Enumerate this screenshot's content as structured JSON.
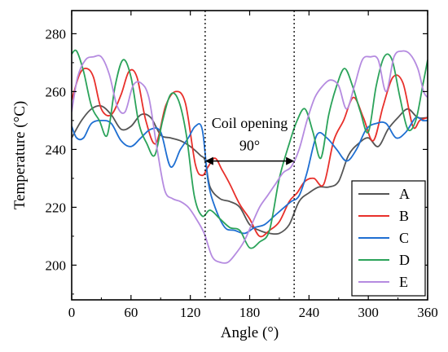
{
  "chart_data": {
    "type": "line",
    "xlabel": "Angle (°)",
    "ylabel": "Temperature (°C)",
    "xlim": [
      0,
      360
    ],
    "ylim": [
      188,
      288
    ],
    "xticks": [
      0,
      60,
      120,
      180,
      240,
      300,
      360
    ],
    "yticks": [
      200,
      220,
      240,
      260,
      280
    ],
    "grid": false,
    "legend_position": "bottom-right",
    "annotations": {
      "label": "Coil opening",
      "span_label": "90°",
      "vlines": [
        135,
        225
      ],
      "arrow_y": 236
    },
    "series": [
      {
        "name": "A",
        "color": "#555555",
        "x": [
          0,
          10,
          20,
          30,
          40,
          50,
          60,
          70,
          80,
          90,
          100,
          110,
          120,
          130,
          135,
          140,
          150,
          160,
          170,
          180,
          190,
          200,
          210,
          220,
          230,
          240,
          250,
          260,
          270,
          280,
          290,
          300,
          310,
          320,
          330,
          340,
          350,
          360
        ],
        "y": [
          244,
          250,
          254,
          255,
          252,
          247,
          248,
          252,
          251,
          245,
          244,
          243,
          241,
          238,
          236,
          227,
          223,
          222,
          220,
          214,
          212,
          211,
          211,
          214,
          222,
          225,
          227,
          227,
          229,
          238,
          242,
          244,
          241,
          247,
          251,
          254,
          251,
          251
        ]
      },
      {
        "name": "B",
        "color": "#e8302b",
        "x": [
          0,
          8,
          15,
          22,
          30,
          40,
          50,
          58,
          66,
          75,
          85,
          95,
          105,
          115,
          125,
          132,
          138,
          145,
          152,
          160,
          170,
          180,
          190,
          200,
          210,
          220,
          228,
          236,
          245,
          255,
          265,
          275,
          285,
          295,
          305,
          315,
          325,
          335,
          345,
          352,
          360
        ],
        "y": [
          257,
          266,
          268,
          265,
          254,
          252,
          259,
          267,
          265,
          250,
          242,
          255,
          260,
          256,
          235,
          231,
          234,
          237,
          233,
          228,
          221,
          216,
          210,
          212,
          215,
          222,
          225,
          229,
          230,
          228,
          243,
          250,
          258,
          251,
          243,
          255,
          265,
          263,
          248,
          250,
          251
        ]
      },
      {
        "name": "C",
        "color": "#1f6fd2",
        "x": [
          0,
          5,
          12,
          20,
          30,
          40,
          50,
          60,
          70,
          80,
          90,
          100,
          110,
          118,
          125,
          132,
          138,
          145,
          155,
          165,
          175,
          185,
          195,
          205,
          215,
          222,
          230,
          238,
          248,
          258,
          268,
          278,
          288,
          298,
          308,
          318,
          328,
          338,
          348,
          355,
          360
        ],
        "y": [
          248,
          244,
          244,
          249,
          250,
          249,
          243,
          241,
          244,
          247,
          246,
          234,
          240,
          244,
          248,
          247,
          229,
          220,
          213,
          212,
          211,
          213,
          214,
          217,
          220,
          222,
          224,
          232,
          245,
          244,
          240,
          236,
          240,
          247,
          249,
          249,
          244,
          246,
          251,
          250,
          250
        ]
      },
      {
        "name": "D",
        "color": "#2ba35a",
        "x": [
          0,
          5,
          12,
          20,
          28,
          36,
          44,
          52,
          60,
          68,
          76,
          84,
          92,
          100,
          108,
          116,
          124,
          132,
          140,
          150,
          160,
          170,
          180,
          190,
          200,
          210,
          220,
          228,
          236,
          244,
          252,
          260,
          268,
          276,
          284,
          292,
          300,
          308,
          316,
          324,
          332,
          340,
          348,
          355,
          360
        ],
        "y": [
          273,
          274,
          267,
          255,
          250,
          245,
          262,
          271,
          265,
          249,
          242,
          238,
          250,
          259,
          257,
          245,
          224,
          217,
          219,
          216,
          213,
          212,
          206,
          208,
          212,
          230,
          242,
          250,
          254,
          246,
          237,
          252,
          262,
          268,
          262,
          253,
          246,
          262,
          272,
          271,
          258,
          247,
          250,
          262,
          271
        ]
      },
      {
        "name": "E",
        "color": "#b58be0",
        "x": [
          0,
          6,
          14,
          22,
          30,
          38,
          46,
          54,
          62,
          70,
          78,
          86,
          94,
          102,
          110,
          118,
          126,
          134,
          142,
          150,
          158,
          166,
          174,
          182,
          190,
          198,
          206,
          214,
          222,
          230,
          238,
          246,
          254,
          262,
          270,
          278,
          286,
          294,
          302,
          310,
          318,
          326,
          334,
          342,
          350,
          356,
          360
        ],
        "y": [
          253,
          265,
          271,
          272,
          272,
          266,
          255,
          253,
          262,
          263,
          258,
          241,
          226,
          223,
          222,
          220,
          216,
          211,
          203,
          201,
          201,
          204,
          208,
          214,
          220,
          224,
          228,
          232,
          234,
          240,
          250,
          258,
          262,
          264,
          262,
          254,
          262,
          271,
          272,
          271,
          260,
          272,
          274,
          273,
          268,
          260,
          258
        ]
      }
    ]
  }
}
